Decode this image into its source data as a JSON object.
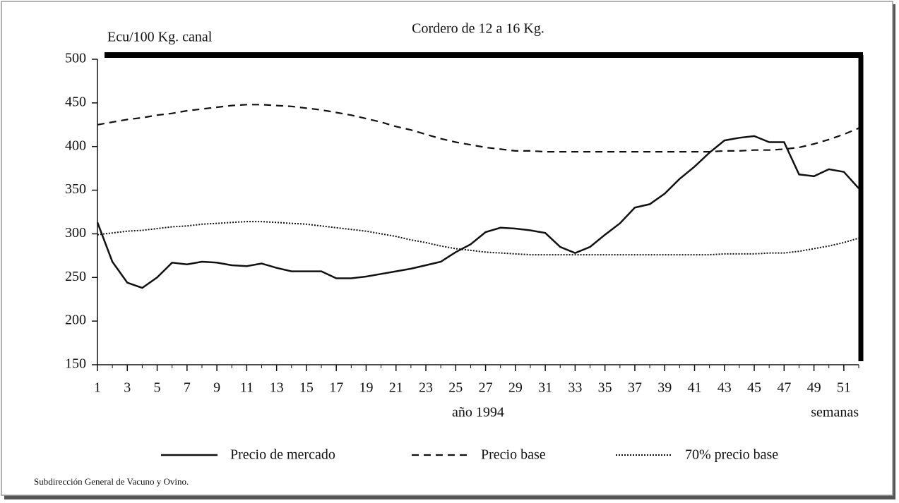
{
  "chart_data": {
    "type": "line",
    "title": "Cordero de 12 a 16 Kg.",
    "y_label": "Ecu/100 Kg. canal",
    "x_label": "año 1994",
    "x_unit_label": "semanas",
    "source": "Subdirección General de Vacuno y Ovino.",
    "x": [
      1,
      2,
      3,
      4,
      5,
      6,
      7,
      8,
      9,
      10,
      11,
      12,
      13,
      14,
      15,
      16,
      17,
      18,
      19,
      20,
      21,
      22,
      23,
      24,
      25,
      26,
      27,
      28,
      29,
      30,
      31,
      32,
      33,
      34,
      35,
      36,
      37,
      38,
      39,
      40,
      41,
      42,
      43,
      44,
      45,
      46,
      47,
      48,
      49,
      50,
      51,
      52
    ],
    "xlim": [
      1,
      52
    ],
    "xticks": [
      1,
      3,
      5,
      7,
      9,
      11,
      13,
      15,
      17,
      19,
      21,
      23,
      25,
      27,
      29,
      31,
      33,
      35,
      37,
      39,
      41,
      43,
      45,
      47,
      49,
      51
    ],
    "ylim": [
      150,
      500
    ],
    "yticks": [
      150,
      200,
      250,
      300,
      350,
      400,
      450,
      500
    ],
    "series": [
      {
        "name": "Precio de mercado",
        "color": "#111111",
        "style": "solid",
        "values": [
          313,
          268,
          244,
          238,
          250,
          267,
          265,
          268,
          267,
          264,
          263,
          266,
          261,
          257,
          257,
          257,
          249,
          249,
          251,
          254,
          257,
          260,
          264,
          268,
          279,
          288,
          302,
          307,
          306,
          304,
          301,
          285,
          278,
          285,
          299,
          312,
          330,
          334,
          346,
          363,
          377,
          393,
          407,
          410,
          412,
          405,
          405,
          368,
          366,
          374,
          371,
          352
        ]
      },
      {
        "name": "Precio base",
        "color": "#111111",
        "style": "dashed",
        "values": [
          425,
          428,
          431,
          433,
          436,
          438,
          441,
          443,
          445,
          447,
          448,
          448,
          447,
          446,
          444,
          442,
          439,
          436,
          432,
          428,
          423,
          419,
          414,
          409,
          405,
          402,
          399,
          397,
          395,
          395,
          394,
          394,
          394,
          394,
          394,
          394,
          394,
          394,
          394,
          394,
          394,
          394,
          395,
          395,
          396,
          396,
          397,
          399,
          403,
          408,
          414,
          421
        ]
      },
      {
        "name": "70% precio base",
        "color": "#111111",
        "style": "dotted",
        "values": [
          299,
          301,
          303,
          304,
          306,
          308,
          309,
          311,
          312,
          313,
          314,
          314,
          313,
          312,
          311,
          309,
          307,
          305,
          303,
          300,
          297,
          293,
          290,
          286,
          283,
          281,
          279,
          278,
          277,
          276,
          276,
          276,
          276,
          276,
          276,
          276,
          276,
          276,
          276,
          276,
          276,
          276,
          277,
          277,
          277,
          278,
          278,
          280,
          283,
          286,
          290,
          295
        ]
      }
    ]
  }
}
